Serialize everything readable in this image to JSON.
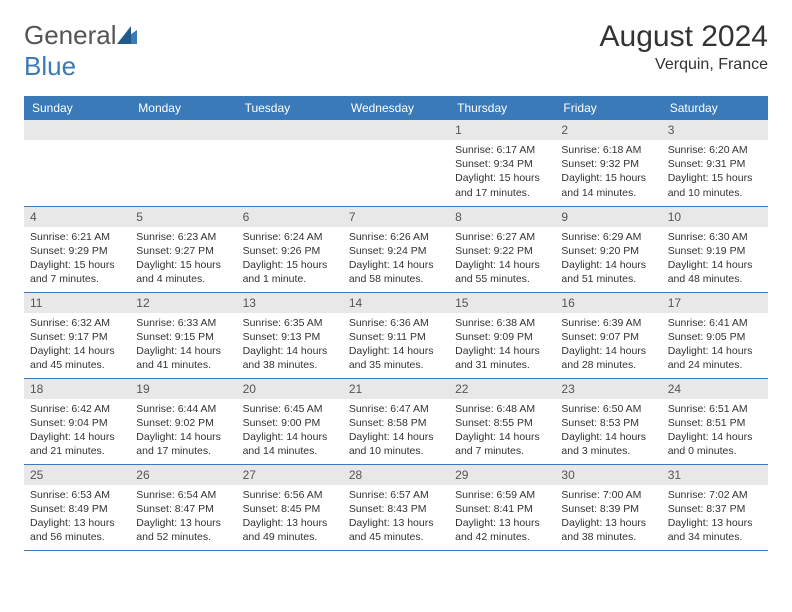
{
  "logo": {
    "part1": "General",
    "part2": "Blue"
  },
  "title": "August 2024",
  "location": "Verquin, France",
  "weekdays": [
    "Sunday",
    "Monday",
    "Tuesday",
    "Wednesday",
    "Thursday",
    "Friday",
    "Saturday"
  ],
  "colors": {
    "header_bg": "#3a7ab8",
    "header_fg": "#ffffff",
    "daynum_bg": "#e8e8e8",
    "border": "#3a7ab8",
    "text": "#333333",
    "logo_gray": "#555555",
    "logo_blue": "#3a7ab8"
  },
  "weeks": [
    [
      null,
      null,
      null,
      null,
      {
        "n": "1",
        "sr": "6:17 AM",
        "ss": "9:34 PM",
        "dl": "15 hours and 17 minutes."
      },
      {
        "n": "2",
        "sr": "6:18 AM",
        "ss": "9:32 PM",
        "dl": "15 hours and 14 minutes."
      },
      {
        "n": "3",
        "sr": "6:20 AM",
        "ss": "9:31 PM",
        "dl": "15 hours and 10 minutes."
      }
    ],
    [
      {
        "n": "4",
        "sr": "6:21 AM",
        "ss": "9:29 PM",
        "dl": "15 hours and 7 minutes."
      },
      {
        "n": "5",
        "sr": "6:23 AM",
        "ss": "9:27 PM",
        "dl": "15 hours and 4 minutes."
      },
      {
        "n": "6",
        "sr": "6:24 AM",
        "ss": "9:26 PM",
        "dl": "15 hours and 1 minute."
      },
      {
        "n": "7",
        "sr": "6:26 AM",
        "ss": "9:24 PM",
        "dl": "14 hours and 58 minutes."
      },
      {
        "n": "8",
        "sr": "6:27 AM",
        "ss": "9:22 PM",
        "dl": "14 hours and 55 minutes."
      },
      {
        "n": "9",
        "sr": "6:29 AM",
        "ss": "9:20 PM",
        "dl": "14 hours and 51 minutes."
      },
      {
        "n": "10",
        "sr": "6:30 AM",
        "ss": "9:19 PM",
        "dl": "14 hours and 48 minutes."
      }
    ],
    [
      {
        "n": "11",
        "sr": "6:32 AM",
        "ss": "9:17 PM",
        "dl": "14 hours and 45 minutes."
      },
      {
        "n": "12",
        "sr": "6:33 AM",
        "ss": "9:15 PM",
        "dl": "14 hours and 41 minutes."
      },
      {
        "n": "13",
        "sr": "6:35 AM",
        "ss": "9:13 PM",
        "dl": "14 hours and 38 minutes."
      },
      {
        "n": "14",
        "sr": "6:36 AM",
        "ss": "9:11 PM",
        "dl": "14 hours and 35 minutes."
      },
      {
        "n": "15",
        "sr": "6:38 AM",
        "ss": "9:09 PM",
        "dl": "14 hours and 31 minutes."
      },
      {
        "n": "16",
        "sr": "6:39 AM",
        "ss": "9:07 PM",
        "dl": "14 hours and 28 minutes."
      },
      {
        "n": "17",
        "sr": "6:41 AM",
        "ss": "9:05 PM",
        "dl": "14 hours and 24 minutes."
      }
    ],
    [
      {
        "n": "18",
        "sr": "6:42 AM",
        "ss": "9:04 PM",
        "dl": "14 hours and 21 minutes."
      },
      {
        "n": "19",
        "sr": "6:44 AM",
        "ss": "9:02 PM",
        "dl": "14 hours and 17 minutes."
      },
      {
        "n": "20",
        "sr": "6:45 AM",
        "ss": "9:00 PM",
        "dl": "14 hours and 14 minutes."
      },
      {
        "n": "21",
        "sr": "6:47 AM",
        "ss": "8:58 PM",
        "dl": "14 hours and 10 minutes."
      },
      {
        "n": "22",
        "sr": "6:48 AM",
        "ss": "8:55 PM",
        "dl": "14 hours and 7 minutes."
      },
      {
        "n": "23",
        "sr": "6:50 AM",
        "ss": "8:53 PM",
        "dl": "14 hours and 3 minutes."
      },
      {
        "n": "24",
        "sr": "6:51 AM",
        "ss": "8:51 PM",
        "dl": "14 hours and 0 minutes."
      }
    ],
    [
      {
        "n": "25",
        "sr": "6:53 AM",
        "ss": "8:49 PM",
        "dl": "13 hours and 56 minutes."
      },
      {
        "n": "26",
        "sr": "6:54 AM",
        "ss": "8:47 PM",
        "dl": "13 hours and 52 minutes."
      },
      {
        "n": "27",
        "sr": "6:56 AM",
        "ss": "8:45 PM",
        "dl": "13 hours and 49 minutes."
      },
      {
        "n": "28",
        "sr": "6:57 AM",
        "ss": "8:43 PM",
        "dl": "13 hours and 45 minutes."
      },
      {
        "n": "29",
        "sr": "6:59 AM",
        "ss": "8:41 PM",
        "dl": "13 hours and 42 minutes."
      },
      {
        "n": "30",
        "sr": "7:00 AM",
        "ss": "8:39 PM",
        "dl": "13 hours and 38 minutes."
      },
      {
        "n": "31",
        "sr": "7:02 AM",
        "ss": "8:37 PM",
        "dl": "13 hours and 34 minutes."
      }
    ]
  ],
  "labels": {
    "sunrise": "Sunrise: ",
    "sunset": "Sunset: ",
    "daylight": "Daylight: "
  }
}
